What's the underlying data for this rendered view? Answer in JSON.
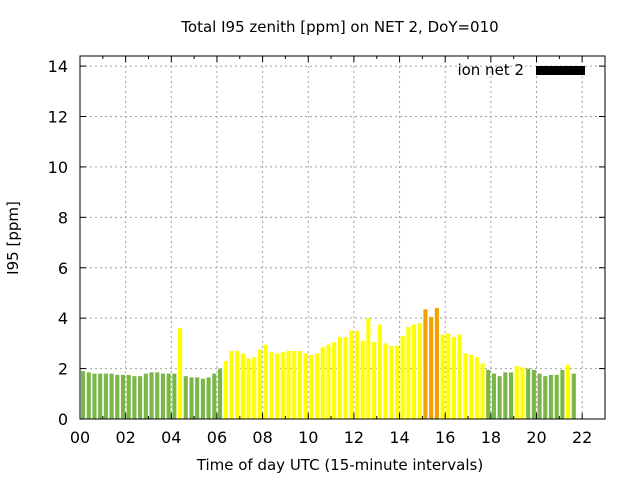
{
  "chart_data": {
    "type": "bar",
    "title": "Total I95 zenith [ppm] on NET 2, DoY=010",
    "xlabel": "Time of day UTC (15-minute intervals)",
    "ylabel": "I95 [ppm]",
    "xlim": [
      0,
      23
    ],
    "ylim": [
      0,
      14.4
    ],
    "x_ticks": [
      "00",
      "02",
      "04",
      "06",
      "08",
      "10",
      "12",
      "14",
      "16",
      "18",
      "20",
      "22"
    ],
    "y_ticks": [
      "0",
      "2",
      "4",
      "6",
      "8",
      "10",
      "12",
      "14"
    ],
    "grid": true,
    "legend": {
      "label": "ion net 2",
      "color": "#000000",
      "position": "top-right"
    },
    "bar_colors": {
      "low": "#7ab648",
      "mid": "#ffff00",
      "high": "#f0a000"
    },
    "interval_hours": 0.25,
    "values": [
      1.9,
      1.85,
      1.8,
      1.8,
      1.8,
      1.8,
      1.75,
      1.75,
      1.75,
      1.7,
      1.7,
      1.8,
      1.85,
      1.85,
      1.8,
      1.8,
      1.8,
      3.6,
      1.7,
      1.65,
      1.65,
      1.6,
      1.65,
      1.8,
      2.0,
      2.3,
      2.7,
      2.7,
      2.6,
      2.4,
      2.45,
      2.75,
      2.95,
      2.65,
      2.6,
      2.65,
      2.7,
      2.7,
      2.7,
      2.6,
      2.55,
      2.6,
      2.85,
      2.95,
      3.05,
      3.25,
      3.25,
      3.5,
      3.5,
      3.1,
      4.0,
      3.05,
      3.75,
      3.0,
      2.9,
      2.9,
      3.3,
      3.65,
      3.75,
      3.8,
      4.35,
      4.05,
      4.4,
      3.35,
      3.4,
      3.25,
      3.35,
      2.6,
      2.55,
      2.45,
      2.2,
      1.95,
      1.8,
      1.7,
      1.85,
      1.85,
      2.1,
      2.05,
      2.0,
      1.95,
      1.8,
      1.7,
      1.75,
      1.75,
      1.95,
      2.15,
      1.8
    ],
    "colors": [
      "low",
      "low",
      "low",
      "low",
      "low",
      "low",
      "low",
      "low",
      "low",
      "low",
      "low",
      "low",
      "low",
      "low",
      "low",
      "low",
      "low",
      "mid",
      "low",
      "low",
      "low",
      "low",
      "low",
      "low",
      "low",
      "mid",
      "mid",
      "mid",
      "mid",
      "mid",
      "mid",
      "mid",
      "mid",
      "mid",
      "mid",
      "mid",
      "mid",
      "mid",
      "mid",
      "mid",
      "mid",
      "mid",
      "mid",
      "mid",
      "mid",
      "mid",
      "mid",
      "mid",
      "mid",
      "mid",
      "mid",
      "mid",
      "mid",
      "mid",
      "mid",
      "mid",
      "mid",
      "mid",
      "mid",
      "mid",
      "high",
      "high",
      "high",
      "mid",
      "mid",
      "mid",
      "mid",
      "mid",
      "mid",
      "mid",
      "mid",
      "low",
      "low",
      "low",
      "low",
      "low",
      "mid",
      "mid",
      "low",
      "low",
      "low",
      "low",
      "low",
      "low",
      "low",
      "mid",
      "low"
    ]
  }
}
